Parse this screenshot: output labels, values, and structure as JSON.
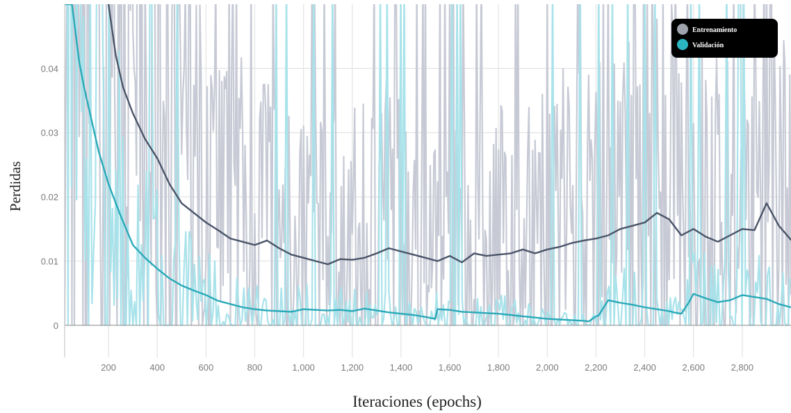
{
  "chart_data": {
    "type": "line",
    "title": "",
    "xlabel": "Iteraciones (epochs)",
    "ylabel": "Perdidas",
    "xlim": [
      20,
      3000
    ],
    "ylim": [
      -0.005,
      0.05
    ],
    "x_ticks": [
      200,
      400,
      600,
      800,
      1000,
      1200,
      1400,
      1600,
      1800,
      2000,
      2200,
      2400,
      2600,
      2800
    ],
    "x_tick_labels": [
      "200",
      "400",
      "600",
      "800",
      "1,000",
      "1,200",
      "1,400",
      "1,600",
      "1,800",
      "2,000",
      "2,200",
      "2,400",
      "2,600",
      "2,800"
    ],
    "y_ticks": [
      0,
      0.01,
      0.02,
      0.03,
      0.04
    ],
    "y_tick_labels": [
      "0",
      "0.01",
      "0.02",
      "0.03",
      "0.04"
    ],
    "grid": true,
    "legend_position": "top-right",
    "series": [
      {
        "name": "Entrenamiento",
        "color": "#4a5468",
        "raw_color": "#c7cad5",
        "x": [
          200,
          230,
          260,
          300,
          350,
          400,
          450,
          500,
          550,
          600,
          650,
          700,
          750,
          800,
          850,
          900,
          950,
          1000,
          1050,
          1100,
          1150,
          1200,
          1250,
          1300,
          1350,
          1400,
          1450,
          1500,
          1550,
          1600,
          1650,
          1700,
          1750,
          1800,
          1850,
          1900,
          1950,
          2000,
          2050,
          2100,
          2150,
          2200,
          2250,
          2300,
          2350,
          2400,
          2450,
          2500,
          2550,
          2600,
          2650,
          2700,
          2750,
          2800,
          2850,
          2900,
          2950,
          3000
        ],
        "y": [
          0.05,
          0.042,
          0.037,
          0.033,
          0.029,
          0.026,
          0.022,
          0.019,
          0.0175,
          0.016,
          0.0148,
          0.0135,
          0.013,
          0.0125,
          0.0132,
          0.012,
          0.011,
          0.0105,
          0.01,
          0.0095,
          0.0103,
          0.0102,
          0.0105,
          0.0112,
          0.012,
          0.0115,
          0.011,
          0.0105,
          0.01,
          0.0108,
          0.0098,
          0.0112,
          0.0108,
          0.011,
          0.0112,
          0.0118,
          0.0112,
          0.0118,
          0.0122,
          0.0128,
          0.0132,
          0.0135,
          0.014,
          0.015,
          0.0155,
          0.016,
          0.0175,
          0.0165,
          0.014,
          0.015,
          0.0138,
          0.013,
          0.014,
          0.015,
          0.0148,
          0.019,
          0.0155,
          0.0133
        ]
      },
      {
        "name": "Validación",
        "color": "#2aa9b8",
        "raw_color": "#a8e2ea",
        "x": [
          20,
          50,
          80,
          100,
          130,
          160,
          200,
          250,
          300,
          350,
          400,
          450,
          500,
          550,
          600,
          650,
          700,
          750,
          800,
          850,
          900,
          950,
          1000,
          1050,
          1100,
          1150,
          1200,
          1250,
          1300,
          1350,
          1400,
          1450,
          1500,
          1540,
          1550,
          1600,
          1650,
          1700,
          1750,
          1800,
          1850,
          1900,
          1950,
          2000,
          2050,
          2100,
          2150,
          2170,
          2200,
          2210,
          2250,
          2300,
          2350,
          2400,
          2450,
          2500,
          2520,
          2550,
          2580,
          2600,
          2650,
          2700,
          2750,
          2800,
          2850,
          2900,
          2950,
          3000
        ],
        "y": [
          0.05,
          0.05,
          0.041,
          0.037,
          0.032,
          0.027,
          0.022,
          0.017,
          0.0125,
          0.0105,
          0.0088,
          0.0073,
          0.0062,
          0.0054,
          0.0047,
          0.0038,
          0.0033,
          0.0028,
          0.0025,
          0.0023,
          0.0022,
          0.0021,
          0.0025,
          0.0024,
          0.0023,
          0.0024,
          0.0022,
          0.0026,
          0.0023,
          0.002,
          0.0018,
          0.0016,
          0.0013,
          0.001,
          0.0025,
          0.0024,
          0.0021,
          0.002,
          0.0019,
          0.0018,
          0.0016,
          0.0014,
          0.0012,
          0.001,
          0.0009,
          0.0008,
          0.0007,
          0.0006,
          0.0014,
          0.0015,
          0.0039,
          0.0035,
          0.0032,
          0.0028,
          0.0025,
          0.0022,
          0.002,
          0.0018,
          0.0035,
          0.0049,
          0.0042,
          0.0036,
          0.0039,
          0.0047,
          0.0044,
          0.0041,
          0.0033,
          0.0028
        ]
      }
    ]
  }
}
